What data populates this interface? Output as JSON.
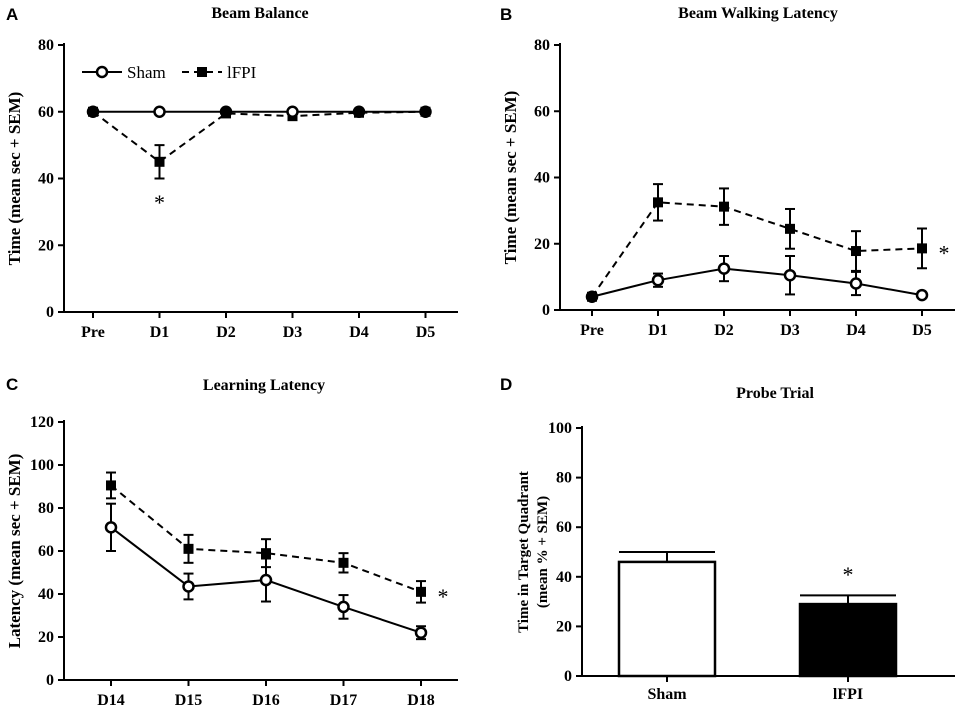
{
  "panels": {
    "a": {
      "label": "A"
    },
    "b": {
      "label": "B"
    },
    "c": {
      "label": "C"
    },
    "d": {
      "label": "D"
    }
  },
  "chart_data": [
    {
      "id": "a",
      "type": "line",
      "title": "Beam Balance",
      "ylabel": "Time (mean sec + SEM)",
      "xlabel": "",
      "ylim": [
        0,
        80
      ],
      "yticks": [
        0,
        20,
        40,
        60,
        80
      ],
      "categories": [
        "Pre",
        "D1",
        "D2",
        "D3",
        "D4",
        "D5"
      ],
      "legend": {
        "position": "top-left",
        "entries": [
          "Sham",
          "lFPI"
        ]
      },
      "series": [
        {
          "name": "Sham",
          "style": "solid",
          "marker": "open-circle",
          "values": [
            60,
            60,
            60,
            60,
            60,
            60
          ],
          "errors": [
            0,
            0,
            0,
            0,
            0,
            0
          ]
        },
        {
          "name": "lFPI",
          "style": "dashed",
          "marker": "filled-square",
          "values": [
            60,
            45,
            59.5,
            58.7,
            59.7,
            60
          ],
          "errors": [
            0,
            5,
            0.7,
            1.2,
            0.5,
            0
          ]
        }
      ],
      "annotations": [
        {
          "text": "*",
          "category": "D1",
          "y": 33
        }
      ]
    },
    {
      "id": "b",
      "type": "line",
      "title": "Beam Walking Latency",
      "ylabel": "Time (mean sec + SEM)",
      "xlabel": "",
      "ylim": [
        0,
        80
      ],
      "yticks": [
        0,
        20,
        40,
        60,
        80
      ],
      "categories": [
        "Pre",
        "D1",
        "D2",
        "D3",
        "D4",
        "D5"
      ],
      "series": [
        {
          "name": "Sham",
          "style": "solid",
          "marker": "open-circle",
          "values": [
            4,
            9,
            12.5,
            10.5,
            8,
            4.5
          ],
          "errors": [
            0.5,
            2,
            3.8,
            5.8,
            3.5,
            0.5
          ]
        },
        {
          "name": "lFPI",
          "style": "dashed",
          "marker": "filled-square",
          "values": [
            4,
            32.5,
            31.2,
            24.5,
            17.8,
            18.6
          ],
          "errors": [
            0.5,
            5.5,
            5.5,
            6,
            6,
            6
          ]
        }
      ],
      "annotations": [
        {
          "text": "*",
          "category": "D5",
          "y": 18.6,
          "offset": "right"
        }
      ]
    },
    {
      "id": "c",
      "type": "line",
      "title": "Learning Latency",
      "ylabel": "Latency (mean sec + SEM)",
      "xlabel": "",
      "ylim": [
        0,
        120
      ],
      "yticks": [
        0,
        20,
        40,
        60,
        80,
        100,
        120
      ],
      "categories": [
        "D14",
        "D15",
        "D16",
        "D17",
        "D18"
      ],
      "series": [
        {
          "name": "Sham",
          "style": "solid",
          "marker": "open-circle",
          "values": [
            71,
            43.5,
            46.5,
            34,
            22
          ],
          "errors": [
            11,
            6,
            10,
            5.5,
            3
          ]
        },
        {
          "name": "lFPI",
          "style": "dashed",
          "marker": "filled-square",
          "values": [
            90.5,
            61,
            59,
            54.5,
            41
          ],
          "errors": [
            6,
            6.5,
            6.5,
            4.5,
            5
          ]
        }
      ],
      "annotations": [
        {
          "text": "*",
          "category": "D18",
          "y": 41,
          "offset": "right"
        }
      ]
    },
    {
      "id": "d",
      "type": "bar",
      "title": "Probe  Trial",
      "ylabel": [
        "Time in Target Quadrant",
        "(mean % + SEM)"
      ],
      "xlabel": "",
      "ylim": [
        0,
        100
      ],
      "yticks": [
        0,
        20,
        40,
        60,
        80,
        100
      ],
      "categories": [
        "Sham",
        "lFPI"
      ],
      "values": [
        46,
        29
      ],
      "errors": [
        4,
        3.5
      ],
      "fills": [
        "#ffffff",
        "#000000"
      ],
      "annotations": [
        {
          "text": "*",
          "category": "lFPI",
          "y": 46
        }
      ]
    }
  ]
}
